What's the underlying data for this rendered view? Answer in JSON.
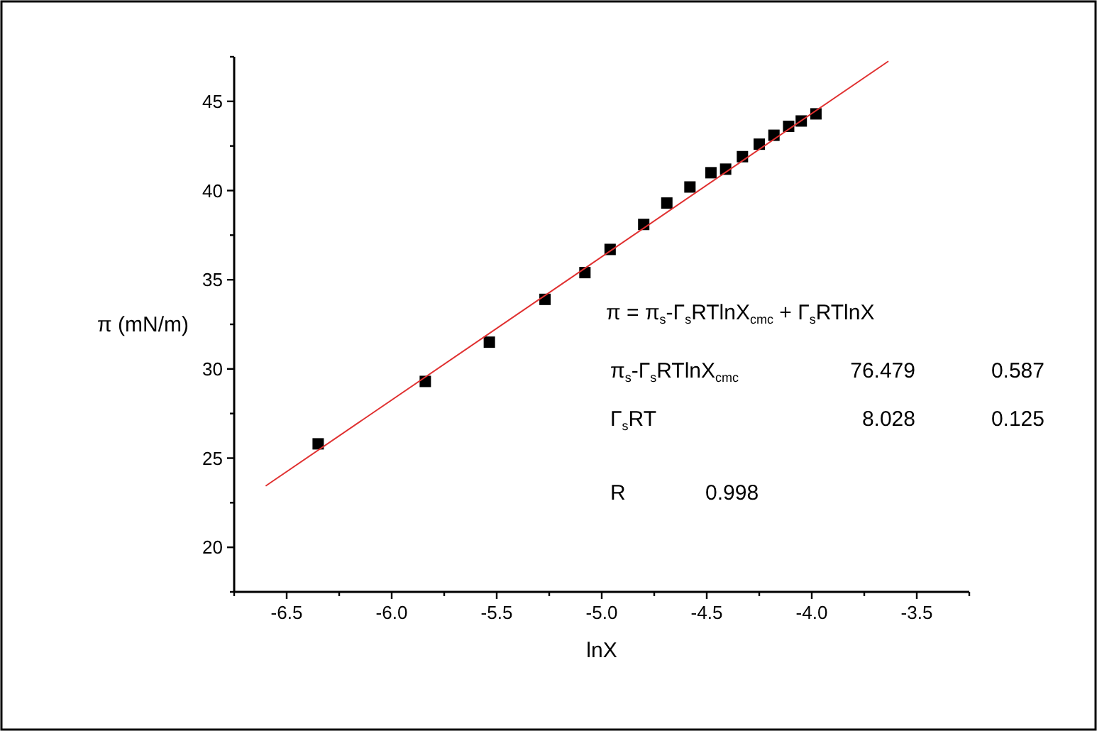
{
  "chart_data": {
    "type": "scatter",
    "xlabel": "lnX",
    "ylabel": "π (mN/m)",
    "xlim": [
      -6.75,
      -3.25
    ],
    "ylim": [
      17.5,
      47.5
    ],
    "xticks": [
      {
        "value": -6.75,
        "label": null
      },
      -6.5,
      {
        "value": -6.25,
        "label": null
      },
      {
        "value": -6.0,
        "label": "-6.0"
      },
      {
        "value": -5.75,
        "label": null
      },
      -5.5,
      {
        "value": -5.25,
        "label": null
      },
      {
        "value": -5.0,
        "label": "-5.0"
      },
      {
        "value": -4.75,
        "label": null
      },
      -4.5,
      {
        "value": -4.25,
        "label": null
      },
      {
        "value": -4.0,
        "label": "-4.0"
      },
      {
        "value": -3.75,
        "label": null
      },
      -3.5,
      {
        "value": -3.25,
        "label": null
      }
    ],
    "yticks": [
      {
        "value": 17.5,
        "label": null
      },
      20,
      {
        "value": 22.5,
        "label": null
      },
      25,
      {
        "value": 27.5,
        "label": null
      },
      30,
      {
        "value": 32.5,
        "label": null
      },
      35,
      {
        "value": 37.5,
        "label": null
      },
      40,
      {
        "value": 42.5,
        "label": null
      },
      45,
      {
        "value": 47.5,
        "label": null
      }
    ],
    "grid": false,
    "marker": "square",
    "series": [
      {
        "color": "#000000",
        "x": [
          -6.35,
          -5.84,
          -5.535,
          -5.27,
          -5.08,
          -4.96,
          -4.8,
          -4.69,
          -4.58,
          -4.48,
          -4.41,
          -4.33,
          -4.25,
          -4.18,
          -4.11,
          -4.05,
          -3.98
        ],
        "values": [
          25.8,
          29.3,
          31.5,
          33.9,
          35.4,
          36.7,
          38.1,
          39.3,
          40.2,
          41.0,
          41.2,
          41.9,
          42.6,
          43.1,
          43.6,
          43.9,
          44.3
        ]
      },
      {
        "type": "line",
        "color": "#e03030",
        "marker": "none",
        "line_style": "solid",
        "x": [
          -6.6,
          -3.635
        ],
        "values": [
          23.44,
          47.25
        ]
      }
    ],
    "annotations": [
      "π = π$_{s}$-Γ$_{s}$RTlnX$_{cmc}$ + Γ$_{s}$RTlnX",
      "π$_{s}$-Γ$_{s}$RTlnX$_{cmc}$",
      "76.479",
      "0.587",
      "Γ$_{s}$RT",
      "8.028",
      "0.125",
      "R",
      "0.998"
    ]
  }
}
